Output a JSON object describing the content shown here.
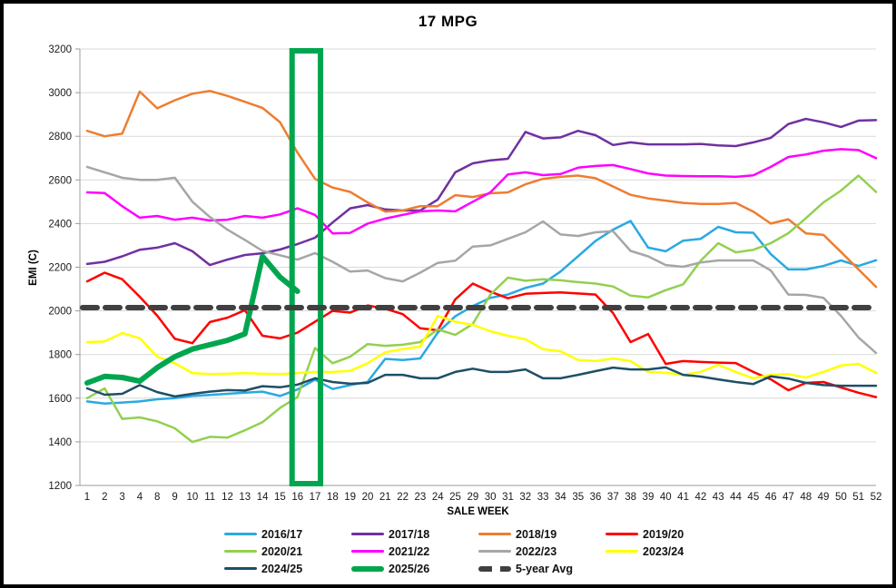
{
  "chart_data": {
    "type": "line",
    "title": "17 MPG",
    "xlabel": "SALE WEEK",
    "ylabel": "EMI (C)",
    "ylim": [
      1200,
      3200
    ],
    "ytick_step": 200,
    "grid": true,
    "legend_position": "bottom",
    "categories": [
      1,
      2,
      3,
      4,
      8,
      9,
      10,
      11,
      12,
      13,
      14,
      15,
      16,
      17,
      18,
      19,
      20,
      21,
      22,
      23,
      24,
      25,
      29,
      30,
      31,
      32,
      33,
      34,
      35,
      36,
      37,
      38,
      39,
      40,
      41,
      42,
      43,
      44,
      45,
      46,
      47,
      48,
      49,
      50,
      51,
      52
    ],
    "highlight_box": {
      "from_week": 16,
      "to_week": 17,
      "color": "#00A64F"
    },
    "series": [
      {
        "name": "2016/17",
        "color": "#29A9E1",
        "width": 2.5,
        "values": [
          1585,
          1575,
          1580,
          1585,
          1595,
          1600,
          1610,
          1615,
          1620,
          1625,
          1630,
          1610,
          1640,
          1685,
          1642,
          1660,
          1675,
          1780,
          1775,
          1782,
          1900,
          1975,
          2022,
          2060,
          2075,
          2105,
          2125,
          2180,
          2250,
          2320,
          2372,
          2412,
          2290,
          2273,
          2322,
          2330,
          2385,
          2360,
          2358,
          2260,
          2190,
          2190,
          2206,
          2231,
          2206,
          2232
        ]
      },
      {
        "name": "2017/18",
        "color": "#7030A0",
        "width": 2.5,
        "values": [
          2215,
          2225,
          2250,
          2280,
          2290,
          2310,
          2273,
          2210,
          2235,
          2256,
          2264,
          2281,
          2306,
          2335,
          2405,
          2470,
          2485,
          2465,
          2460,
          2460,
          2510,
          2635,
          2676,
          2690,
          2697,
          2820,
          2790,
          2795,
          2825,
          2805,
          2760,
          2772,
          2763,
          2763,
          2763,
          2765,
          2758,
          2755,
          2772,
          2793,
          2856,
          2880,
          2864,
          2843,
          2872,
          2874
        ]
      },
      {
        "name": "2018/19",
        "color": "#ED7D31",
        "width": 2.5,
        "values": [
          2825,
          2800,
          2812,
          3005,
          2928,
          2965,
          2995,
          3008,
          2985,
          2958,
          2930,
          2865,
          2725,
          2605,
          2565,
          2545,
          2497,
          2455,
          2460,
          2480,
          2480,
          2530,
          2522,
          2539,
          2543,
          2580,
          2605,
          2614,
          2620,
          2608,
          2570,
          2532,
          2515,
          2505,
          2495,
          2490,
          2490,
          2495,
          2455,
          2400,
          2420,
          2355,
          2348,
          2270,
          2190,
          2110
        ]
      },
      {
        "name": "2019/20",
        "color": "#FF0000",
        "width": 2.5,
        "values": [
          2135,
          2175,
          2145,
          2065,
          1978,
          1872,
          1852,
          1949,
          1969,
          2003,
          1886,
          1874,
          1900,
          1950,
          2000,
          1992,
          2025,
          2010,
          1985,
          1920,
          1911,
          2053,
          2125,
          2088,
          2058,
          2078,
          2082,
          2085,
          2080,
          2075,
          1990,
          1857,
          1894,
          1757,
          1770,
          1766,
          1763,
          1761,
          1720,
          1686,
          1636,
          1670,
          1674,
          1649,
          1625,
          1605
        ]
      },
      {
        "name": "2020/21",
        "color": "#92D050",
        "width": 2.5,
        "values": [
          1600,
          1645,
          1505,
          1512,
          1494,
          1462,
          1399,
          1423,
          1419,
          1453,
          1490,
          1555,
          1605,
          1830,
          1760,
          1790,
          1848,
          1840,
          1845,
          1857,
          1915,
          1890,
          1940,
          2075,
          2152,
          2138,
          2145,
          2140,
          2132,
          2125,
          2112,
          2070,
          2062,
          2095,
          2122,
          2230,
          2310,
          2268,
          2280,
          2310,
          2356,
          2425,
          2497,
          2551,
          2620,
          2545
        ]
      },
      {
        "name": "2021/22",
        "color": "#FF00FF",
        "width": 2.5,
        "values": [
          2543,
          2540,
          2480,
          2427,
          2435,
          2418,
          2427,
          2414,
          2418,
          2435,
          2427,
          2442,
          2470,
          2440,
          2355,
          2357,
          2400,
          2423,
          2440,
          2456,
          2460,
          2456,
          2500,
          2543,
          2625,
          2635,
          2622,
          2627,
          2656,
          2664,
          2668,
          2650,
          2630,
          2620,
          2618,
          2617,
          2617,
          2614,
          2621,
          2660,
          2705,
          2717,
          2734,
          2741,
          2737,
          2700
        ]
      },
      {
        "name": "2022/23",
        "color": "#A6A6A6",
        "width": 2.5,
        "values": [
          2660,
          2635,
          2610,
          2600,
          2600,
          2610,
          2500,
          2430,
          2372,
          2325,
          2275,
          2255,
          2235,
          2265,
          2225,
          2180,
          2185,
          2150,
          2135,
          2175,
          2220,
          2230,
          2295,
          2300,
          2330,
          2360,
          2410,
          2350,
          2343,
          2360,
          2365,
          2275,
          2250,
          2210,
          2202,
          2222,
          2231,
          2231,
          2231,
          2185,
          2075,
          2073,
          2060,
          1977,
          1878,
          1807
        ]
      },
      {
        "name": "2023/24",
        "color": "#FFFF00",
        "width": 2.5,
        "values": [
          1857,
          1860,
          1898,
          1875,
          1790,
          1760,
          1715,
          1710,
          1712,
          1715,
          1712,
          1710,
          1715,
          1720,
          1720,
          1725,
          1760,
          1810,
          1825,
          1836,
          1977,
          1950,
          1936,
          1907,
          1886,
          1870,
          1825,
          1815,
          1775,
          1770,
          1782,
          1770,
          1720,
          1716,
          1707,
          1720,
          1753,
          1720,
          1691,
          1707,
          1710,
          1695,
          1720,
          1750,
          1757,
          1716
        ]
      },
      {
        "name": "2024/25",
        "color": "#1D4F67",
        "width": 2.5,
        "values": [
          1645,
          1616,
          1620,
          1660,
          1628,
          1608,
          1620,
          1630,
          1637,
          1635,
          1655,
          1650,
          1662,
          1691,
          1674,
          1666,
          1670,
          1707,
          1707,
          1691,
          1691,
          1720,
          1735,
          1720,
          1720,
          1732,
          1691,
          1691,
          1707,
          1724,
          1740,
          1732,
          1732,
          1741,
          1707,
          1699,
          1686,
          1674,
          1665,
          1700,
          1690,
          1670,
          1660,
          1657,
          1657,
          1657
        ]
      },
      {
        "name": "2025/26",
        "color": "#00A64F",
        "width": 6,
        "values": [
          1670,
          1700,
          1695,
          1678,
          1740,
          1790,
          1825,
          1845,
          1865,
          1895,
          2250,
          2155,
          2090,
          null,
          null,
          null,
          null,
          null,
          null,
          null,
          null,
          null,
          null,
          null,
          null,
          null,
          null,
          null,
          null,
          null,
          null,
          null,
          null,
          null,
          null,
          null,
          null,
          null,
          null,
          null,
          null,
          null,
          null,
          null,
          null,
          null
        ]
      },
      {
        "name": "5-year Avg",
        "color": "#404040",
        "width": 6,
        "dashed": true,
        "constant": 2015
      }
    ]
  }
}
